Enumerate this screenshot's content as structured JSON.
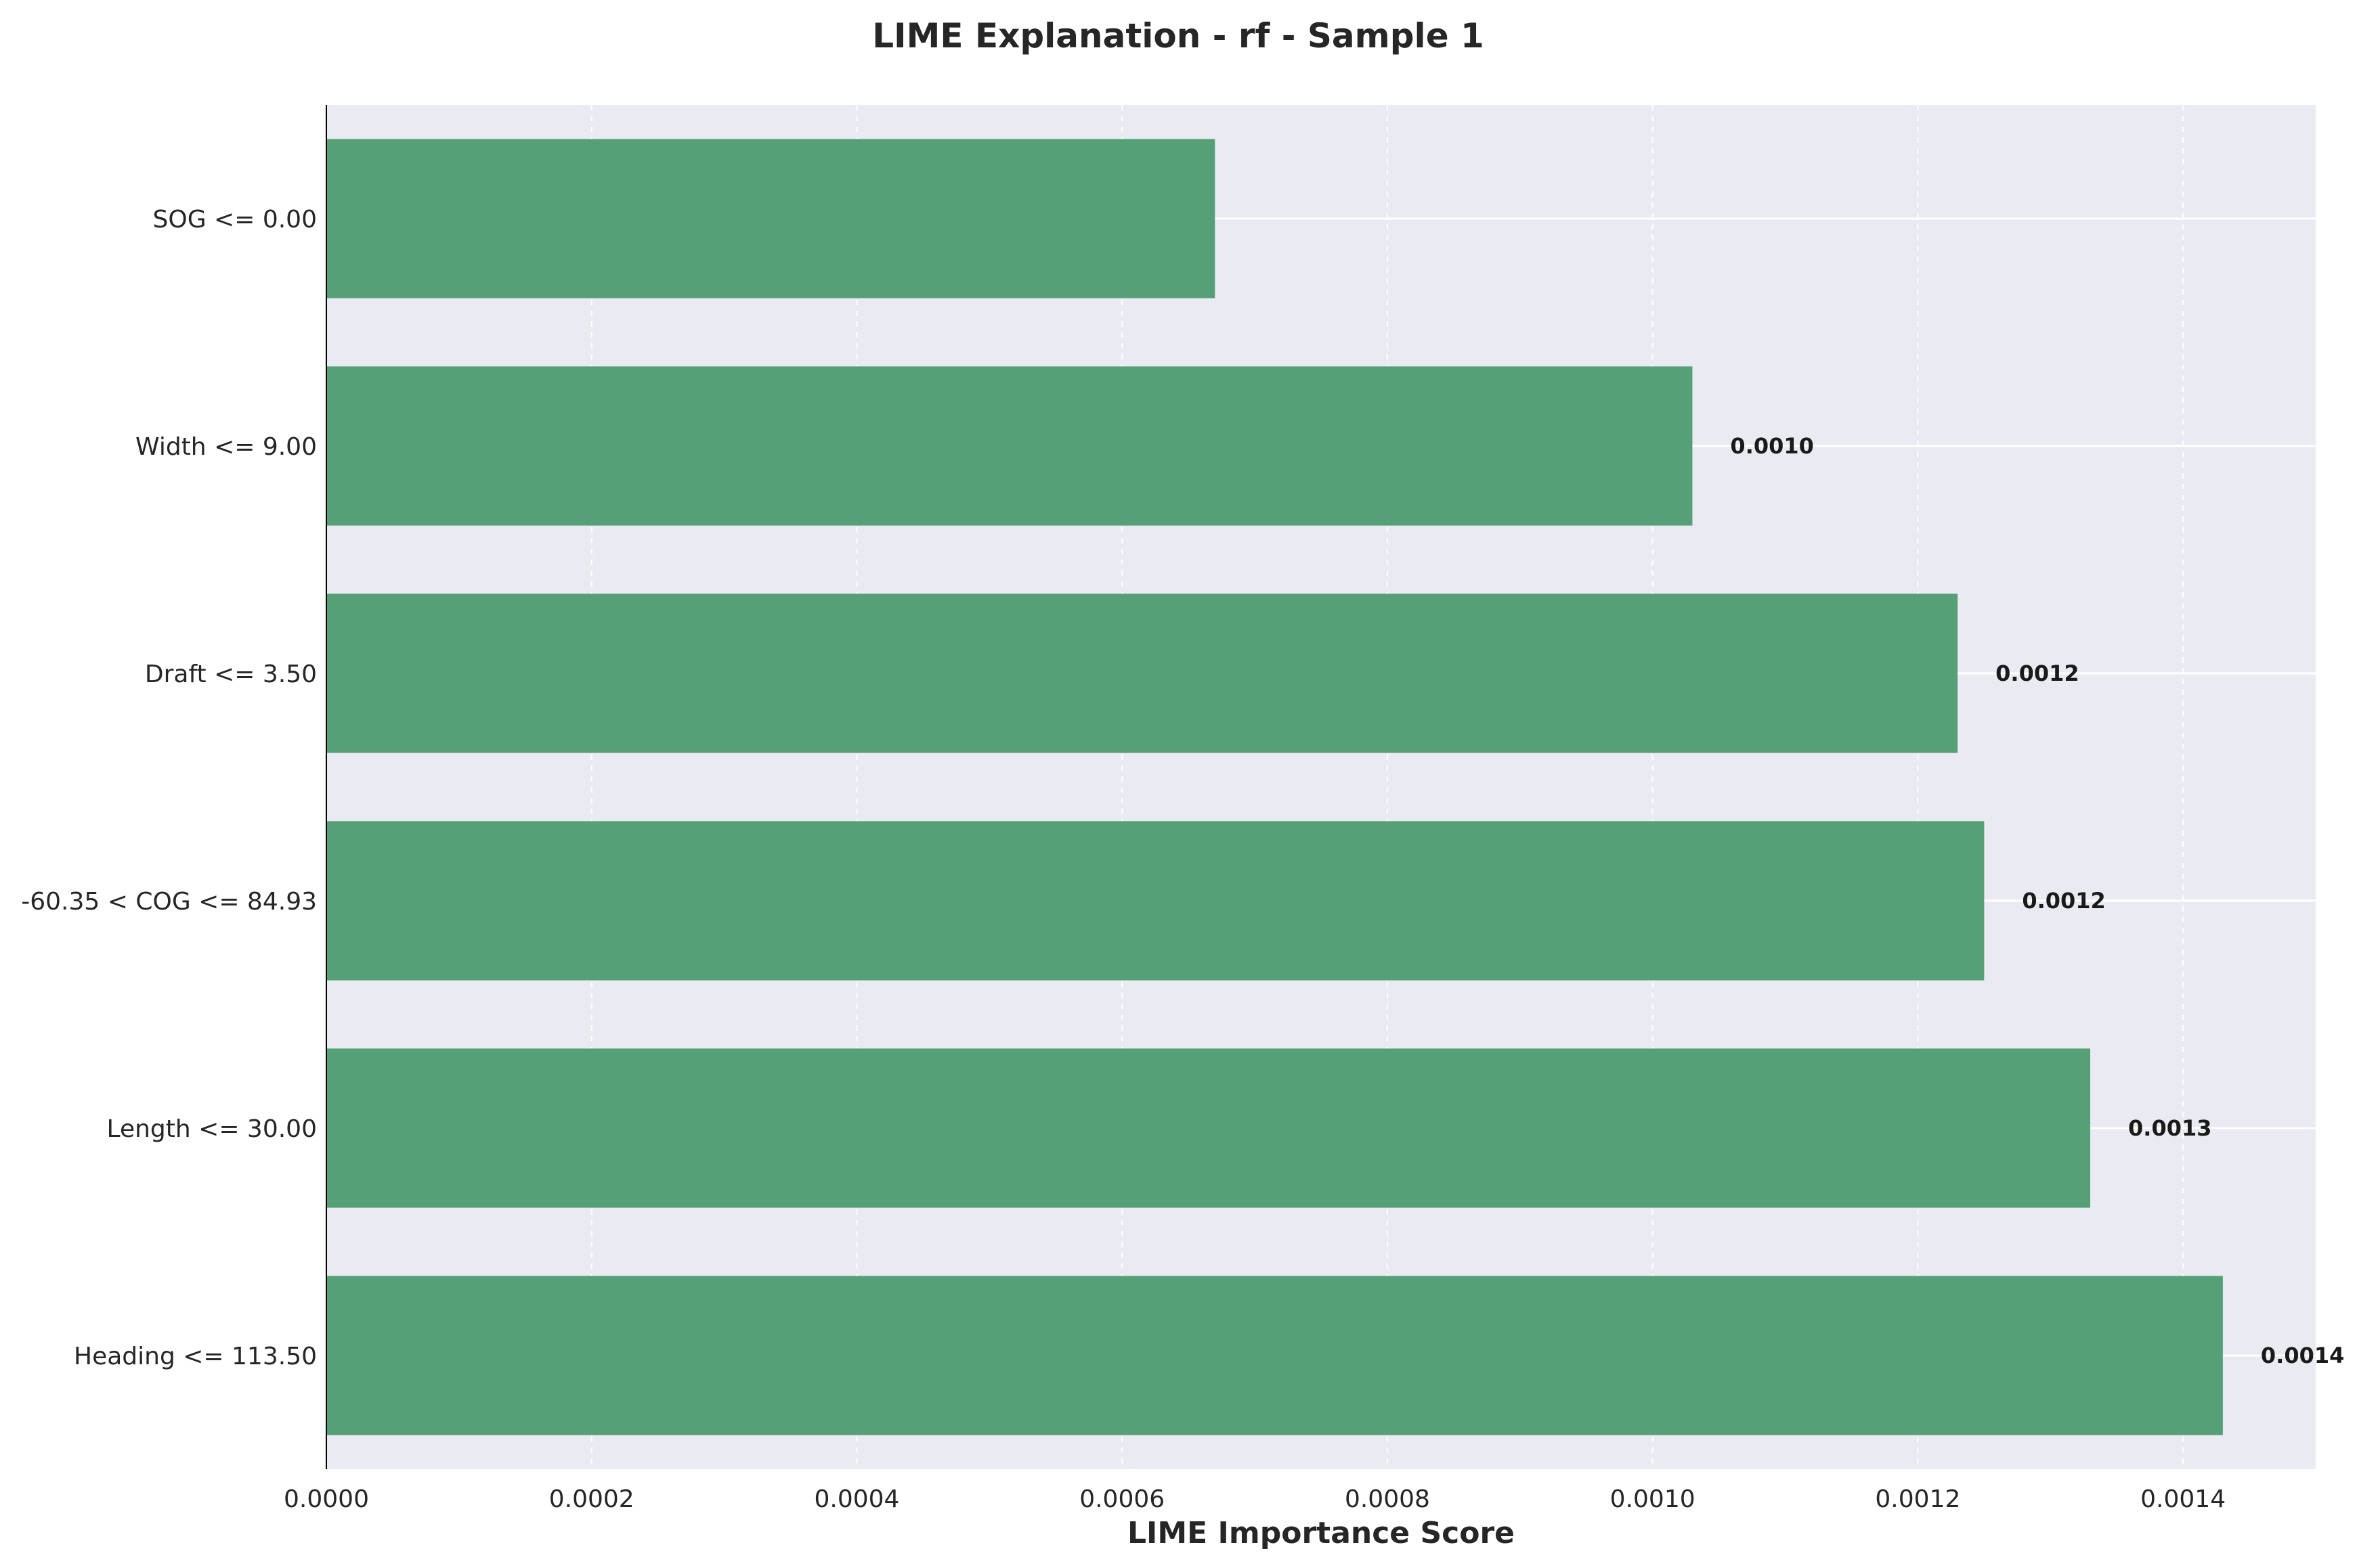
{
  "chart_data": {
    "type": "bar",
    "orientation": "horizontal",
    "title": "LIME Explanation - rf - Sample 1",
    "xlabel": "LIME Importance Score",
    "ylabel": "",
    "categories": [
      "SOG <= 0.00",
      "Width <= 9.00",
      "Draft <= 3.50",
      "-60.35 < COG <= 84.93",
      "Length <= 30.00",
      "Heading <= 113.50"
    ],
    "values": [
      0.00067,
      0.00103,
      0.00123,
      0.00125,
      0.00133,
      0.00143
    ],
    "data_labels": [
      "",
      "0.0010",
      "0.0012",
      "0.0012",
      "0.0013",
      "0.0014"
    ],
    "xlim": [
      0,
      0.0015
    ],
    "xticks": [
      0,
      0.0002,
      0.0004,
      0.0006,
      0.0008,
      0.001,
      0.0012,
      0.0014
    ],
    "xtick_labels": [
      "0.0000",
      "0.0002",
      "0.0004",
      "0.0006",
      "0.0008",
      "0.0010",
      "0.0012",
      "0.0014"
    ],
    "grid": true,
    "legend": "none",
    "colors": {
      "bar": "#55a077",
      "background": "#eaeaf2",
      "grid": "#ffffff"
    }
  }
}
